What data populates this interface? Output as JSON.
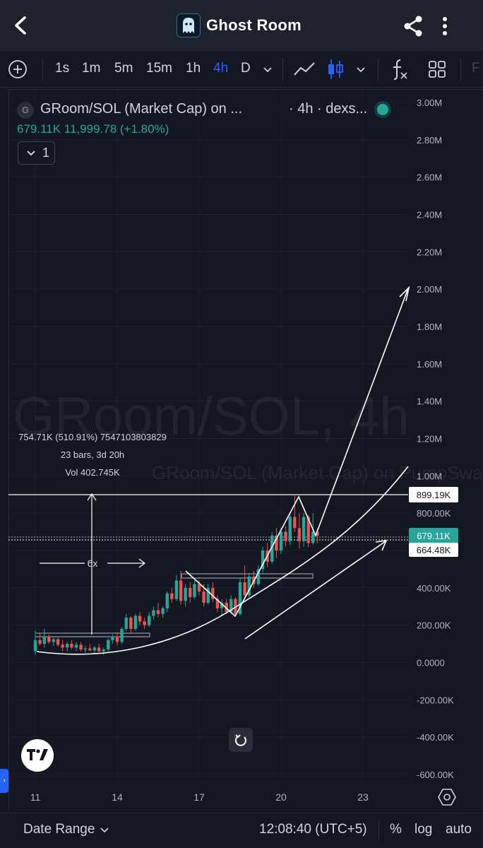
{
  "app": {
    "title": "Ghost Room",
    "icons": {
      "back": "back-arrow-icon",
      "share": "share-icon",
      "more": "more-vertical-icon",
      "avatar": "ghost-avatar-icon"
    }
  },
  "toolbar": {
    "intervals": [
      "1s",
      "1m",
      "5m",
      "15m",
      "1h",
      "4h",
      "D"
    ],
    "active_interval": "4h",
    "icons": [
      "add-circle-icon",
      "chevron-down-icon",
      "line-tool-icon",
      "candlestick-icon",
      "chevron-down-icon",
      "indicators-fx-icon",
      "layout-grid-icon"
    ],
    "overflow_label": "F"
  },
  "legend": {
    "badge": "G",
    "symbol": "GRoom/SOL (Market Cap) on ...",
    "timeframe": "· 4h · dexs...",
    "price_text": "679.11K  11,999.78 (+1.80%)",
    "collapse_count": "1",
    "status_color": "#26a69a"
  },
  "watermark": {
    "line1": "GRoom/SOL, 4h",
    "line2": "GRoom/SOL (Market Cap) on PumpSwap"
  },
  "measure": {
    "line1": "754.71K (510.91%) 7547103803829",
    "line2": "23 bars, 3d 20h",
    "line3": "Vol 402.745K",
    "multiplier": "6x"
  },
  "price_labels": {
    "high": "899.19K",
    "current": "679.11K",
    "reference": "664.48K"
  },
  "colors": {
    "up": "#26a69a",
    "down": "#ef5350",
    "background": "#131722",
    "accent": "#2962ff"
  },
  "chart_data": {
    "type": "candlestick",
    "y_axis_ticks": [
      "3.00M",
      "2.80M",
      "2.60M",
      "2.40M",
      "2.20M",
      "2.00M",
      "1.80M",
      "1.60M",
      "1.40M",
      "1.20M",
      "1.00M",
      "800.00K",
      "600.00K",
      "400.00K",
      "200.00K",
      "0.0000",
      "-200.00K",
      "-400.00K",
      "-600.00K"
    ],
    "y_axis_values": [
      3000000,
      2800000,
      2600000,
      2400000,
      2200000,
      2000000,
      1800000,
      1600000,
      1400000,
      1200000,
      1000000,
      800000,
      600000,
      400000,
      200000,
      0,
      -200000,
      -400000,
      -600000
    ],
    "x_axis_ticks": [
      "11",
      "14",
      "17",
      "20",
      "23"
    ],
    "x_axis_values": [
      11,
      14,
      17,
      20,
      23
    ],
    "ylim": [
      -600000,
      3000000
    ],
    "candles": [
      {
        "x": 11.0,
        "o": 60,
        "h": 170,
        "l": 40,
        "c": 120
      },
      {
        "x": 11.17,
        "o": 120,
        "h": 160,
        "l": 90,
        "c": 100
      },
      {
        "x": 11.33,
        "o": 100,
        "h": 180,
        "l": 80,
        "c": 140
      },
      {
        "x": 11.5,
        "o": 140,
        "h": 150,
        "l": 100,
        "c": 110
      },
      {
        "x": 11.67,
        "o": 110,
        "h": 140,
        "l": 90,
        "c": 125
      },
      {
        "x": 11.83,
        "o": 125,
        "h": 135,
        "l": 85,
        "c": 95
      },
      {
        "x": 12.0,
        "o": 95,
        "h": 120,
        "l": 60,
        "c": 80
      },
      {
        "x": 12.17,
        "o": 80,
        "h": 110,
        "l": 60,
        "c": 100
      },
      {
        "x": 12.33,
        "o": 100,
        "h": 120,
        "l": 70,
        "c": 80
      },
      {
        "x": 12.5,
        "o": 80,
        "h": 110,
        "l": 60,
        "c": 95
      },
      {
        "x": 12.67,
        "o": 95,
        "h": 110,
        "l": 60,
        "c": 70
      },
      {
        "x": 12.83,
        "o": 70,
        "h": 90,
        "l": 50,
        "c": 75
      },
      {
        "x": 13.0,
        "o": 75,
        "h": 100,
        "l": 60,
        "c": 65
      },
      {
        "x": 13.17,
        "o": 65,
        "h": 90,
        "l": 50,
        "c": 80
      },
      {
        "x": 13.33,
        "o": 80,
        "h": 100,
        "l": 55,
        "c": 60
      },
      {
        "x": 13.5,
        "o": 60,
        "h": 80,
        "l": 40,
        "c": 70
      },
      {
        "x": 13.67,
        "o": 70,
        "h": 130,
        "l": 60,
        "c": 120
      },
      {
        "x": 13.83,
        "o": 120,
        "h": 150,
        "l": 100,
        "c": 140
      },
      {
        "x": 14.0,
        "o": 140,
        "h": 160,
        "l": 90,
        "c": 110
      },
      {
        "x": 14.17,
        "o": 110,
        "h": 190,
        "l": 100,
        "c": 180
      },
      {
        "x": 14.33,
        "o": 180,
        "h": 260,
        "l": 170,
        "c": 240
      },
      {
        "x": 14.5,
        "o": 240,
        "h": 250,
        "l": 160,
        "c": 180
      },
      {
        "x": 14.67,
        "o": 180,
        "h": 260,
        "l": 170,
        "c": 250
      },
      {
        "x": 14.83,
        "o": 250,
        "h": 270,
        "l": 200,
        "c": 220
      },
      {
        "x": 15.0,
        "o": 220,
        "h": 240,
        "l": 180,
        "c": 200
      },
      {
        "x": 15.17,
        "o": 200,
        "h": 270,
        "l": 190,
        "c": 250
      },
      {
        "x": 15.33,
        "o": 250,
        "h": 300,
        "l": 230,
        "c": 280
      },
      {
        "x": 15.5,
        "o": 280,
        "h": 320,
        "l": 240,
        "c": 260
      },
      {
        "x": 15.67,
        "o": 260,
        "h": 300,
        "l": 240,
        "c": 290
      },
      {
        "x": 15.83,
        "o": 290,
        "h": 380,
        "l": 270,
        "c": 370
      },
      {
        "x": 16.0,
        "o": 370,
        "h": 400,
        "l": 320,
        "c": 340
      },
      {
        "x": 16.17,
        "o": 340,
        "h": 470,
        "l": 330,
        "c": 440
      },
      {
        "x": 16.33,
        "o": 440,
        "h": 490,
        "l": 310,
        "c": 330
      },
      {
        "x": 16.5,
        "o": 330,
        "h": 420,
        "l": 300,
        "c": 400
      },
      {
        "x": 16.67,
        "o": 400,
        "h": 430,
        "l": 320,
        "c": 350
      },
      {
        "x": 16.83,
        "o": 350,
        "h": 440,
        "l": 340,
        "c": 420
      },
      {
        "x": 17.0,
        "o": 420,
        "h": 440,
        "l": 360,
        "c": 380
      },
      {
        "x": 17.17,
        "o": 380,
        "h": 420,
        "l": 300,
        "c": 320
      },
      {
        "x": 17.33,
        "o": 320,
        "h": 420,
        "l": 310,
        "c": 400
      },
      {
        "x": 17.5,
        "o": 400,
        "h": 430,
        "l": 320,
        "c": 340
      },
      {
        "x": 17.67,
        "o": 340,
        "h": 360,
        "l": 270,
        "c": 290
      },
      {
        "x": 17.83,
        "o": 290,
        "h": 340,
        "l": 250,
        "c": 320
      },
      {
        "x": 18.0,
        "o": 320,
        "h": 340,
        "l": 260,
        "c": 270
      },
      {
        "x": 18.17,
        "o": 270,
        "h": 360,
        "l": 260,
        "c": 340
      },
      {
        "x": 18.33,
        "o": 340,
        "h": 350,
        "l": 250,
        "c": 260
      },
      {
        "x": 18.5,
        "o": 260,
        "h": 450,
        "l": 250,
        "c": 430
      },
      {
        "x": 18.67,
        "o": 430,
        "h": 520,
        "l": 340,
        "c": 360
      },
      {
        "x": 18.83,
        "o": 360,
        "h": 480,
        "l": 350,
        "c": 460
      },
      {
        "x": 19.0,
        "o": 460,
        "h": 490,
        "l": 400,
        "c": 420
      },
      {
        "x": 19.17,
        "o": 420,
        "h": 520,
        "l": 410,
        "c": 500
      },
      {
        "x": 19.33,
        "o": 500,
        "h": 620,
        "l": 480,
        "c": 600
      },
      {
        "x": 19.5,
        "o": 600,
        "h": 640,
        "l": 510,
        "c": 540
      },
      {
        "x": 19.67,
        "o": 540,
        "h": 700,
        "l": 530,
        "c": 680
      },
      {
        "x": 19.83,
        "o": 680,
        "h": 720,
        "l": 560,
        "c": 600
      },
      {
        "x": 20.0,
        "o": 600,
        "h": 720,
        "l": 580,
        "c": 700
      },
      {
        "x": 20.17,
        "o": 700,
        "h": 730,
        "l": 620,
        "c": 650
      },
      {
        "x": 20.33,
        "o": 650,
        "h": 800,
        "l": 630,
        "c": 780
      },
      {
        "x": 20.5,
        "o": 780,
        "h": 899,
        "l": 700,
        "c": 720
      },
      {
        "x": 20.67,
        "o": 720,
        "h": 800,
        "l": 610,
        "c": 650
      },
      {
        "x": 20.83,
        "o": 650,
        "h": 800,
        "l": 620,
        "c": 780
      },
      {
        "x": 21.0,
        "o": 780,
        "h": 790,
        "l": 620,
        "c": 640
      },
      {
        "x": 21.17,
        "o": 640,
        "h": 800,
        "l": 630,
        "c": 700
      },
      {
        "x": 21.33,
        "o": 700,
        "h": 720,
        "l": 640,
        "c": 679
      }
    ],
    "candle_units": "thousands"
  },
  "bottombar": {
    "date_range": "Date Range",
    "time": "12:08:40 (UTC+5)",
    "percent": "%",
    "log": "log",
    "auto": "auto"
  }
}
